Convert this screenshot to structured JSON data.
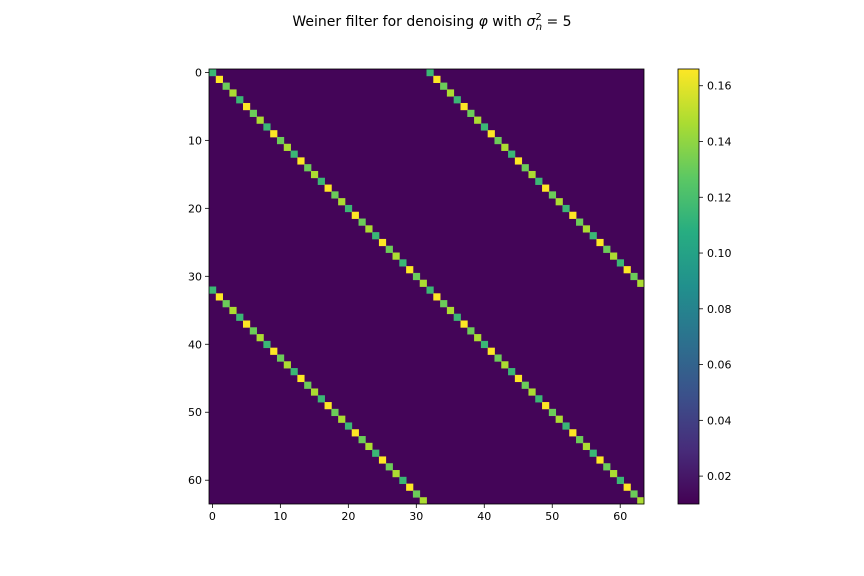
{
  "chart_data": {
    "type": "heatmap",
    "title": "Weiner filter for denoising",
    "title_symbol": "φ",
    "title_with": "with",
    "title_sigma": "σ",
    "title_sup": "2",
    "title_sub": "n",
    "title_eq": "= 5",
    "n": 64,
    "colormap": "viridis",
    "diagonal_offsets": [
      -32,
      0,
      32
    ],
    "diagonal_period": 4,
    "diagonal_pattern": [
      0.115,
      0.167,
      0.131,
      0.147
    ],
    "background_value": 0.012,
    "x_ticks": [
      0,
      10,
      20,
      30,
      40,
      50,
      60
    ],
    "y_ticks": [
      0,
      10,
      20,
      30,
      40,
      50,
      60
    ],
    "colorbar": {
      "min": 0.01,
      "max": 0.166,
      "ticks": [
        0.02,
        0.04,
        0.06,
        0.08,
        0.1,
        0.12,
        0.14,
        0.16
      ],
      "tick_labels": [
        "0.02",
        "0.04",
        "0.06",
        "0.08",
        "0.10",
        "0.12",
        "0.14",
        "0.16"
      ]
    }
  }
}
